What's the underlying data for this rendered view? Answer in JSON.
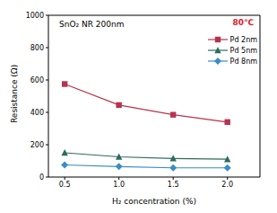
{
  "chart_data": {
    "type": "line",
    "title": "SnO₂ NR 200nm",
    "annotations": [
      "80℃"
    ],
    "x_label": "H₂ concentration (%)",
    "y_label": "Resistance (Ω)",
    "x": [
      0.5,
      1.0,
      1.5,
      2.0
    ],
    "series": [
      {
        "name": "Pd 2nm",
        "color": "#b8324e",
        "marker": "square",
        "values": [
          575,
          445,
          385,
          340
        ]
      },
      {
        "name": "Pd 5nm",
        "color": "#2e6b5c",
        "marker": "triangle",
        "values": [
          150,
          125,
          115,
          110
        ]
      },
      {
        "name": "Pd 8nm",
        "color": "#3a8cc6",
        "marker": "diamond",
        "values": [
          75,
          65,
          57,
          57
        ]
      }
    ],
    "xlim": [
      0.35,
      2.3
    ],
    "xticks": [
      0.5,
      {
        "value": 1,
        "label": "1.0"
      },
      1.5,
      {
        "value": 2,
        "label": "2.0"
      }
    ],
    "ylim": [
      0,
      1000
    ],
    "yticks": [
      0,
      200,
      400,
      600,
      800,
      1000
    ],
    "grid": false,
    "legend": "upper right"
  }
}
